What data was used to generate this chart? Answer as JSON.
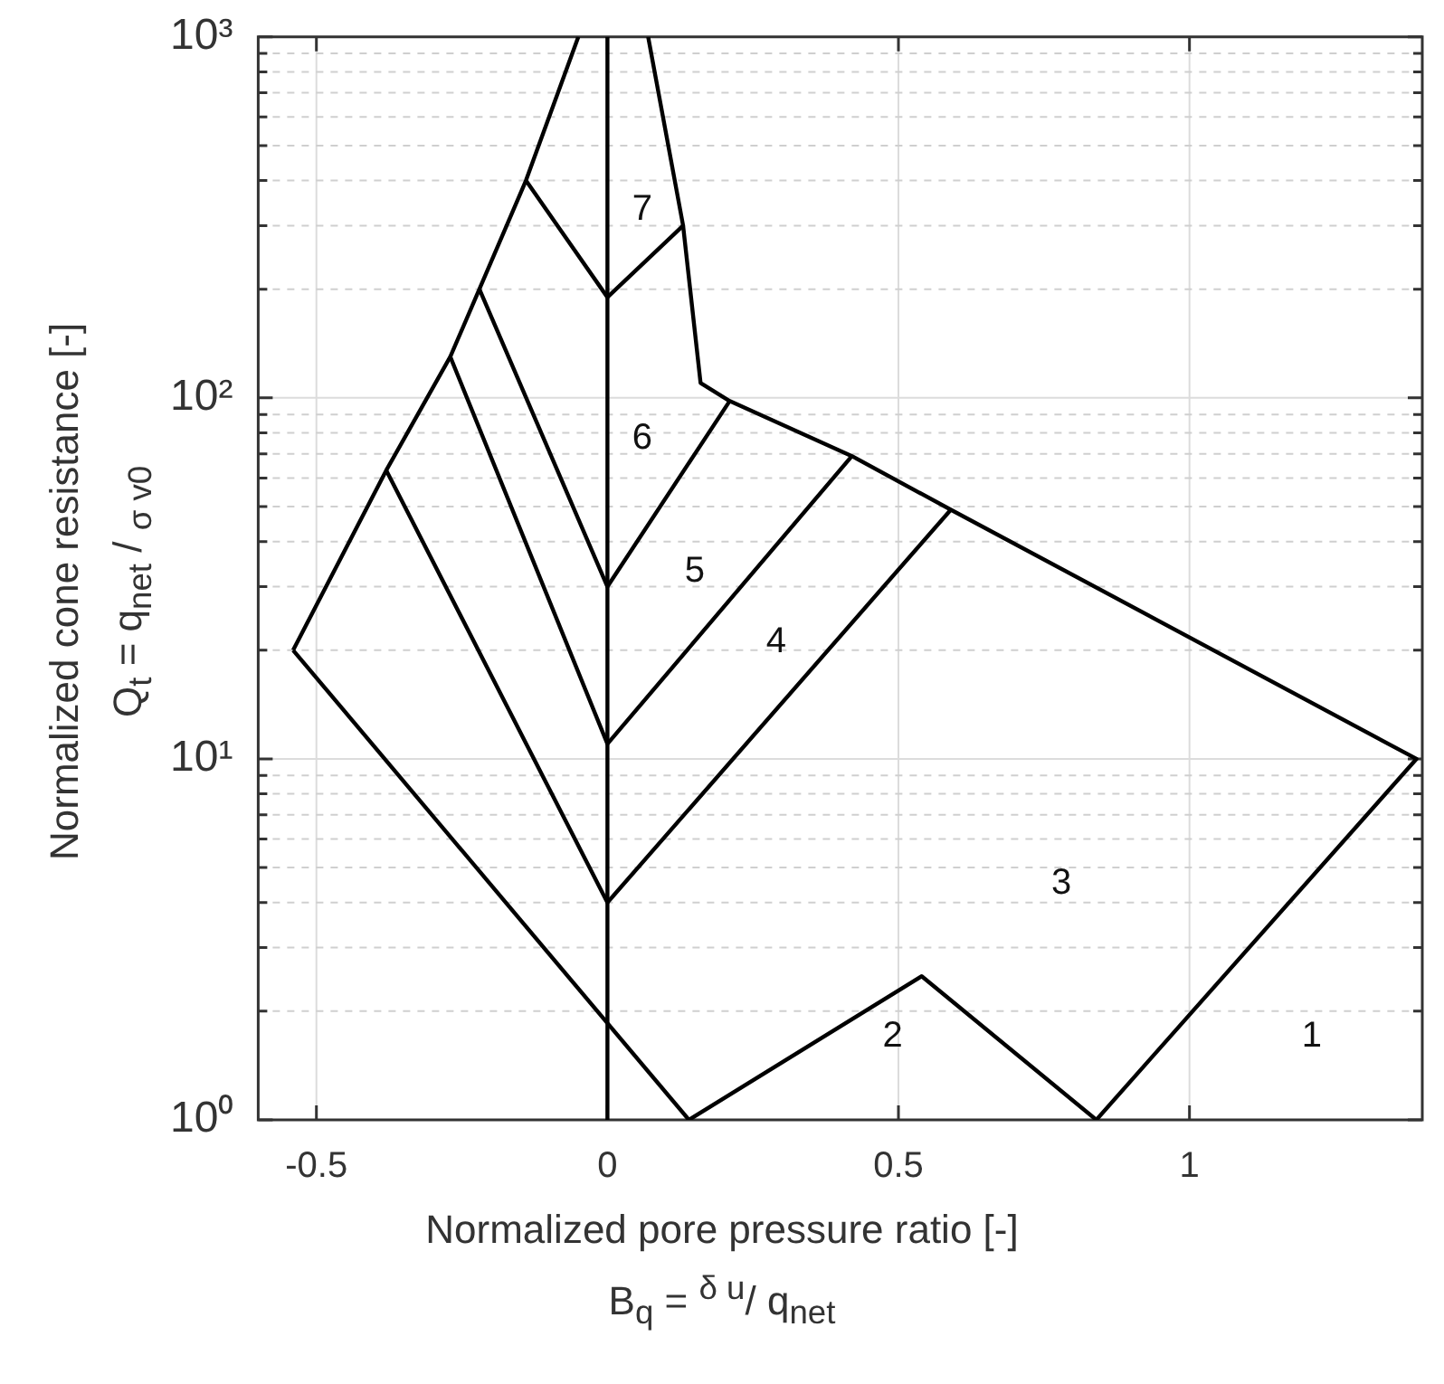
{
  "chart_data": {
    "type": "line",
    "xlabel": "Normalized pore pressure ratio [-]\nB$_{q}$ = $^{δ u}$/ q$_{net}$",
    "ylabel": "Normalized cone resistance [-]\nQ$_{t}$ = q$_{net}$ / $_{σ v0}$",
    "log": "y",
    "grid": true,
    "marker": "none",
    "xlim": [
      -0.6,
      1.4
    ],
    "ylim": [
      1,
      1000
    ],
    "xticks": [
      -0.5,
      0,
      0.5,
      1
    ],
    "yticks": [
      {
        "value": 1,
        "label": "10⁰"
      },
      {
        "value": 2,
        "label": null
      },
      {
        "value": 3,
        "label": null
      },
      {
        "value": 4,
        "label": null
      },
      {
        "value": 5,
        "label": null
      },
      {
        "value": 6,
        "label": null
      },
      {
        "value": 7,
        "label": null
      },
      {
        "value": 8,
        "label": null
      },
      {
        "value": 9,
        "label": null
      },
      {
        "value": 10,
        "label": "10¹"
      },
      {
        "value": 20,
        "label": null
      },
      {
        "value": 30,
        "label": null
      },
      {
        "value": 40,
        "label": null
      },
      {
        "value": 50,
        "label": null
      },
      {
        "value": 60,
        "label": null
      },
      {
        "value": 70,
        "label": null
      },
      {
        "value": 80,
        "label": null
      },
      {
        "value": 90,
        "label": null
      },
      {
        "value": 100,
        "label": "10²"
      },
      {
        "value": 200,
        "label": null
      },
      {
        "value": 300,
        "label": null
      },
      {
        "value": 400,
        "label": null
      },
      {
        "value": 500,
        "label": null
      },
      {
        "value": 600,
        "label": null
      },
      {
        "value": 700,
        "label": null
      },
      {
        "value": 800,
        "label": null
      },
      {
        "value": 900,
        "label": null
      },
      {
        "value": 1000,
        "label": "10³"
      }
    ],
    "series": [
      {
        "color": "#000000",
        "x": [
          -0.54,
          -0.38,
          -0.27,
          -0.22,
          -0.14,
          -0.05
        ],
        "values": [
          20,
          63,
          130,
          200,
          400,
          1000
        ]
      },
      {
        "color": "#000000",
        "x": [
          0.07,
          0.13,
          0.16,
          0.21,
          0.42,
          0.59,
          1.39,
          0.84
        ],
        "values": [
          1000,
          300,
          110,
          98,
          69,
          49,
          10,
          1
        ]
      },
      {
        "color": "#000000",
        "x": [
          -0.54,
          0.14
        ],
        "values": [
          20,
          1
        ]
      },
      {
        "color": "#000000",
        "x": [
          0.14,
          0.54,
          0.84
        ],
        "values": [
          1,
          2.5,
          1
        ]
      },
      {
        "color": "#000000",
        "x": [
          -0.14,
          0,
          0.13
        ],
        "values": [
          400,
          190,
          300
        ]
      },
      {
        "color": "#000000",
        "x": [
          -0.22,
          0,
          0.21
        ],
        "values": [
          200,
          30,
          98
        ]
      },
      {
        "color": "#000000",
        "x": [
          -0.27,
          0,
          0.42
        ],
        "values": [
          130,
          11,
          69
        ]
      },
      {
        "color": "#000000",
        "x": [
          -0.38,
          0,
          0.59
        ],
        "values": [
          63,
          4,
          49
        ]
      },
      {
        "color": "#000000",
        "x": [
          0,
          0
        ],
        "values": [
          1,
          1000
        ]
      }
    ],
    "annotations": [
      "7",
      "6",
      "5",
      "4",
      "3",
      "2",
      "1"
    ]
  }
}
